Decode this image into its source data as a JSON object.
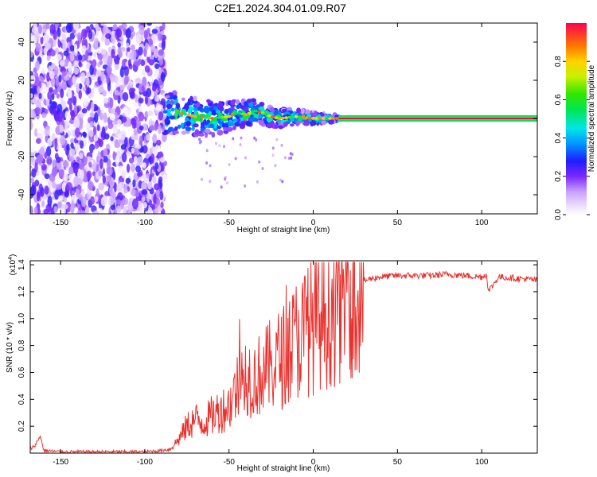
{
  "title": "C2E1.2024.304.01.09.R07",
  "colorbar": {
    "label": "Normalized spectral amplitude",
    "ticks": [
      "0.0",
      "0.2",
      "0.4",
      "0.6",
      "0.8"
    ],
    "tick_values": [
      0.0,
      0.2,
      0.4,
      0.6,
      0.8
    ]
  },
  "chart_data": [
    {
      "type": "heatmap",
      "xlabel": "Height of straight line (km)",
      "ylabel": "Frequency (Hz)",
      "xlim": [
        -168,
        133
      ],
      "ylim": [
        -50,
        50
      ],
      "xticks": [
        -150,
        -100,
        -50,
        0,
        50,
        100
      ],
      "yticks": [
        -40,
        -20,
        0,
        20,
        40
      ],
      "zlim": [
        0,
        1
      ],
      "regions": [
        {
          "x_range": [
            -168,
            -88
          ],
          "note_value": "broadband low-amplitude noise across all frequencies",
          "amplitude": 0.15
        },
        {
          "x_range": [
            -88,
            15
          ],
          "note_value": "clustered signal near 0 Hz, spreading to about +/-10 Hz",
          "amplitude": 0.45
        },
        {
          "x_range": [
            15,
            133
          ],
          "note_value": "narrow peak at 0 Hz",
          "amplitude": 1.0
        }
      ],
      "peak_track": {
        "x": [
          -88,
          -80,
          -70,
          -60,
          -50,
          -45,
          -40,
          -35,
          -30,
          -25,
          -20,
          -10,
          0,
          10,
          15,
          133
        ],
        "y": [
          2,
          3,
          1,
          0,
          1,
          3,
          2,
          4,
          3,
          1,
          0,
          1,
          0,
          0,
          0,
          0
        ]
      }
    },
    {
      "type": "line",
      "xlabel": "Height of straight line (km)",
      "ylabel": "SNR (10 * v/v)",
      "exponent_label": "(x10",
      "exponent_power": "4",
      "exponent_close": ")",
      "xlim": [
        -168,
        133
      ],
      "ylim": [
        0,
        1.43
      ],
      "xticks": [
        -150,
        -100,
        -50,
        0,
        50,
        100
      ],
      "yticks": [
        0.2,
        0.4,
        0.6,
        0.8,
        1.0,
        1.2,
        1.4
      ],
      "ytick_labels": [
        "0.2",
        "0.4",
        "0.6",
        "0.8",
        "1.0",
        "1.2",
        "1.4"
      ],
      "series": [
        {
          "color": "#e8322e",
          "x": [
            -168,
            -165,
            -162,
            -160,
            -150,
            -140,
            -120,
            -100,
            -90,
            -85,
            -80,
            -75,
            -70,
            -65,
            -60,
            -55,
            -50,
            -45,
            -40,
            -35,
            -30,
            -25,
            -20,
            -15,
            -10,
            -5,
            0,
            5,
            10,
            15,
            20,
            25,
            30,
            35,
            40,
            50,
            60,
            70,
            80,
            90,
            100,
            103,
            104,
            110,
            120,
            130,
            133
          ],
          "y": [
            0.03,
            0.06,
            0.13,
            0.02,
            0.01,
            0.01,
            0.01,
            0.01,
            0.02,
            0.03,
            0.1,
            0.2,
            0.25,
            0.23,
            0.28,
            0.32,
            0.35,
            0.5,
            0.6,
            0.55,
            0.6,
            0.65,
            0.7,
            0.75,
            0.85,
            0.9,
            0.95,
            1.0,
            1.05,
            1.1,
            1.2,
            1.25,
            1.28,
            1.3,
            1.31,
            1.32,
            1.32,
            1.32,
            1.33,
            1.32,
            1.31,
            1.33,
            1.2,
            1.31,
            1.3,
            1.29,
            1.28
          ]
        }
      ]
    }
  ]
}
